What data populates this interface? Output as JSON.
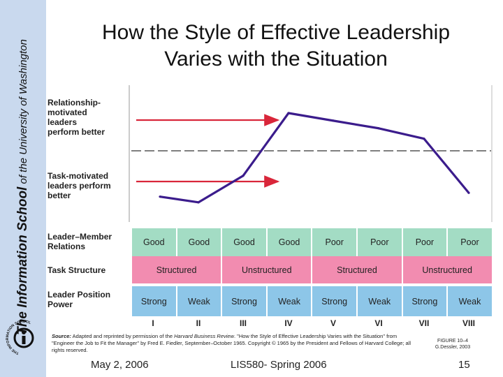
{
  "sidebar": {
    "school_title_bold": "The Information School",
    "school_title_rest": " of the University of Washington",
    "logo_ring_text": "THE INFORMATION SCHOOL"
  },
  "title": {
    "line1": "How the Style of Effective Leadership",
    "line2": "Varies with the Situation"
  },
  "chart_data": {
    "type": "line",
    "categories": [
      "I",
      "II",
      "III",
      "IV",
      "V",
      "VI",
      "VII",
      "VIII"
    ],
    "y_labels": {
      "top": [
        "Relationship-",
        "motivated",
        "leaders",
        "perform better"
      ],
      "bottom": [
        "Task-motivated",
        "leaders perform",
        "better"
      ]
    },
    "series": [
      {
        "values": [
          0.12,
          0.06,
          0.34,
          1.0,
          0.92,
          0.84,
          0.73,
          0.16
        ]
      }
    ],
    "divider": "dashed horizontal line between the two regions",
    "colors": {
      "line": "#3b1c8c",
      "arrows": "#d9263a",
      "good_row": "#a3dcc4",
      "structure_row": "#f28cb0",
      "power_row": "#8dc6e8"
    }
  },
  "table": {
    "rows": [
      {
        "label": [
          "Leader–Member",
          "Relations"
        ],
        "cells": [
          {
            "text": "Good",
            "span": 1
          },
          {
            "text": "Good",
            "span": 1
          },
          {
            "text": "Good",
            "span": 1
          },
          {
            "text": "Good",
            "span": 1
          },
          {
            "text": "Poor",
            "span": 1
          },
          {
            "text": "Poor",
            "span": 1
          },
          {
            "text": "Poor",
            "span": 1
          },
          {
            "text": "Poor",
            "span": 1
          }
        ]
      },
      {
        "label": [
          "Task Structure"
        ],
        "cells": [
          {
            "text": "Structured",
            "span": 2
          },
          {
            "text": "Unstructured",
            "span": 2
          },
          {
            "text": "Structured",
            "span": 2
          },
          {
            "text": "Unstructured",
            "span": 2
          }
        ]
      },
      {
        "label": [
          "Leader Position",
          "Power"
        ],
        "cells": [
          {
            "text": "Strong",
            "span": 1
          },
          {
            "text": "Weak",
            "span": 1
          },
          {
            "text": "Strong",
            "span": 1
          },
          {
            "text": "Weak",
            "span": 1
          },
          {
            "text": "Strong",
            "span": 1
          },
          {
            "text": "Weak",
            "span": 1
          },
          {
            "text": "Strong",
            "span": 1
          },
          {
            "text": "Weak",
            "span": 1
          }
        ]
      }
    ]
  },
  "source": {
    "label": "Source:",
    "text1": " Adapted and reprinted by permission of the ",
    "journal": "Harvard Business Review",
    "text2": ". \"How the Style of Effective Leadership Varies with the Situation\" from \"Engineer the Job to Fit the Manager\" by Fred E. Fiedler, September–October 1965. Copyright © 1965 by the President and Fellows of Harvard College; all rights reserved."
  },
  "figure_note": {
    "line1": "FIGURE 10–4",
    "line2": "G.Dessler, 2003"
  },
  "footer": {
    "date": "May 2, 2006",
    "course": "LIS580- Spring 2006",
    "page": "15"
  }
}
